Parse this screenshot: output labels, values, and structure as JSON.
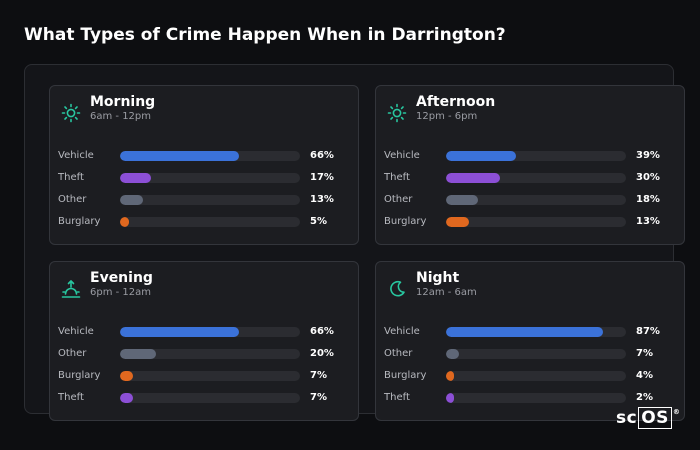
{
  "title": "What Types of Crime Happen When in Darrington?",
  "logo": {
    "text_a": "sc",
    "text_b": "OS",
    "mark": "®"
  },
  "colors": {
    "Vehicle": "#3b72d9",
    "Theft": "#8c4fd6",
    "Other": "#5f6777",
    "Burglary": "#e0681f",
    "icon": "#28c7a0"
  },
  "chart_data": [
    {
      "type": "bar",
      "title": "Morning",
      "subtitle": "6am - 12pm",
      "icon": "sun-icon",
      "categories": [
        "Vehicle",
        "Theft",
        "Other",
        "Burglary"
      ],
      "values": [
        66,
        17,
        13,
        5
      ],
      "labels": [
        "66%",
        "17%",
        "13%",
        "5%"
      ],
      "xlim": [
        0,
        100
      ]
    },
    {
      "type": "bar",
      "title": "Afternoon",
      "subtitle": "12pm - 6pm",
      "icon": "sun-icon",
      "categories": [
        "Vehicle",
        "Theft",
        "Other",
        "Burglary"
      ],
      "values": [
        39,
        30,
        18,
        13
      ],
      "labels": [
        "39%",
        "30%",
        "18%",
        "13%"
      ],
      "xlim": [
        0,
        100
      ]
    },
    {
      "type": "bar",
      "title": "Evening",
      "subtitle": "6pm - 12am",
      "icon": "sunset-icon",
      "categories": [
        "Vehicle",
        "Other",
        "Burglary",
        "Theft"
      ],
      "values": [
        66,
        20,
        7,
        7
      ],
      "labels": [
        "66%",
        "20%",
        "7%",
        "7%"
      ],
      "xlim": [
        0,
        100
      ]
    },
    {
      "type": "bar",
      "title": "Night",
      "subtitle": "12am - 6am",
      "icon": "moon-icon",
      "categories": [
        "Vehicle",
        "Other",
        "Burglary",
        "Theft"
      ],
      "values": [
        87,
        7,
        4,
        2
      ],
      "labels": [
        "87%",
        "7%",
        "4%",
        "2%"
      ],
      "xlim": [
        0,
        100
      ]
    }
  ]
}
